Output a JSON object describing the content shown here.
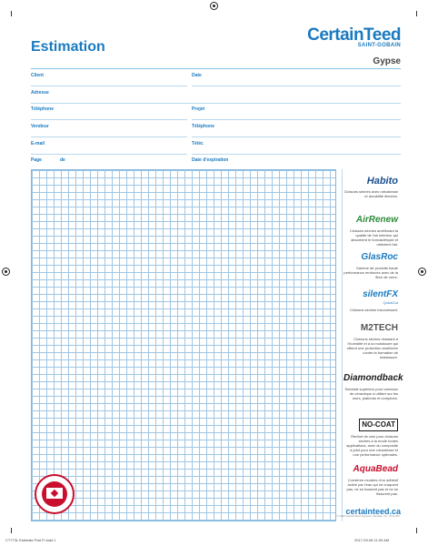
{
  "header": {
    "title": "Estimation",
    "brand_main": "CertainTeed",
    "brand_sub": "SAINT-GOBAIN",
    "product": "Gypse"
  },
  "form": {
    "client": "Client",
    "date": "Date",
    "adresse": "Adresse",
    "telephone": "Téléphone",
    "projet": "Projet",
    "vendeur": "Vendeur",
    "telephone2": "Téléphone",
    "email": "E-mail",
    "telec": "Téléc",
    "page": "Page",
    "de": "de",
    "expiration": "Date d'expiration"
  },
  "sidebar": {
    "products": [
      {
        "logo": "Habito",
        "desc": "Cloisons sèches avec robustesse et durabilité élevées.",
        "color": "#1a4f8c"
      },
      {
        "logo": "AirRenew",
        "desc": "Cloisons sèches améliorant la qualité de l'air intérieur qui absorbent le formaldéhyde et nettoient l'air.",
        "color": "#2e8b3a"
      },
      {
        "logo": "GlasRoc",
        "desc": "Gamme de produits haute performance renforcés avec de la fibre de verre.",
        "color": "#1a7ac0"
      },
      {
        "logo": "silentFX",
        "sublogo": "QuickCut",
        "desc": "Cloisons sèches insonorisant.",
        "color": "#1a7ac0"
      },
      {
        "logo": "M2TECH",
        "desc": "Cloisons sèches résistant à l'humidité et à la moisissure qui offrent une protection améliorée contre la formation de moisissure.",
        "color": "#555555"
      },
      {
        "logo": "Diamondback",
        "desc": "Substrat supérieur pour carreaux de céramique à utiliser sur les murs, plafonds et comptoirs.",
        "color": "#1a1a1a"
      },
      {
        "logo": "NO-COAT",
        "desc": "Renfort de coin pour cloisons sèches à la mode toutes applications, avec du composite à joint pour une robustesse et une performance optimales.",
        "color": "#1a1a1a"
      },
      {
        "logo": "AquaBead",
        "desc": "Cornières murales d'un adhésif activé par l'eau qui ne craquent pas, ne se bossent pas et ne se fissurent pas.",
        "color": "#c8102e"
      }
    ]
  },
  "footer": {
    "footnote": "© 2016 CertainTeed Gypsum Canada, Inc. CTG-407",
    "website": "certainteed.ca",
    "slug_left": "CT773L Estimate Pad Fr.indd  1",
    "slug_right": "2017-09-08   11:00 AM"
  },
  "colors": {
    "accent": "#1a7ac0",
    "grid": "#9fc6e4",
    "seal_red": "#c8102e"
  }
}
